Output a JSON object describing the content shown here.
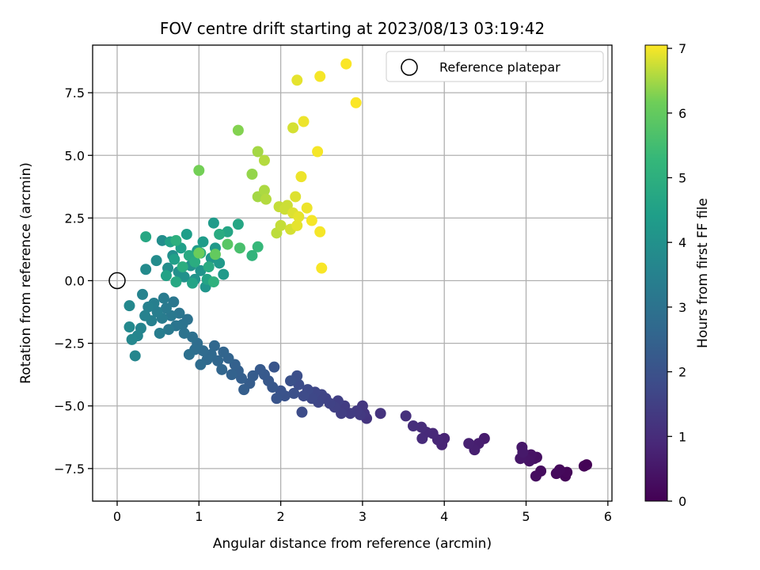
{
  "chart_data": {
    "type": "scatter",
    "title": "FOV centre drift starting at 2023/08/13 03:19:42",
    "xlabel": "Angular distance from reference (arcmin)",
    "ylabel": "Rotation from reference (arcmin)",
    "xlim": [
      -0.3,
      6.05
    ],
    "ylim": [
      -8.8,
      9.4
    ],
    "xticks": [
      0,
      1,
      2,
      3,
      4,
      5,
      6
    ],
    "xtick_labels": [
      "0",
      "1",
      "2",
      "3",
      "4",
      "5",
      "6"
    ],
    "yticks": [
      -7.5,
      -5.0,
      -2.5,
      0.0,
      2.5,
      5.0,
      7.5
    ],
    "ytick_labels": [
      "−7.5",
      "−5.0",
      "−2.5",
      "0.0",
      "2.5",
      "5.0",
      "7.5"
    ],
    "grid": true,
    "legend": {
      "position": "top-right",
      "entries": [
        {
          "label": "Reference platepar",
          "marker": "hollow-circle"
        }
      ]
    },
    "reference_point": {
      "x": 0.0,
      "y": 0.0
    },
    "colorbar": {
      "label": "Hours from first FF file",
      "range": [
        0,
        7.05
      ],
      "ticks": [
        0,
        1,
        2,
        3,
        4,
        5,
        6,
        7
      ],
      "tick_labels": [
        "0",
        "1",
        "2",
        "3",
        "4",
        "5",
        "6",
        "7"
      ],
      "colormap": "viridis"
    },
    "series": [
      {
        "marker": "filled-circle",
        "color_by": "hours",
        "points": [
          {
            "x": 5.74,
            "y": -7.35,
            "c": 0.03
          },
          {
            "x": 5.71,
            "y": -7.4,
            "c": 0.06
          },
          {
            "x": 5.48,
            "y": -7.8,
            "c": 0.1
          },
          {
            "x": 5.5,
            "y": -7.65,
            "c": 0.13
          },
          {
            "x": 5.41,
            "y": -7.55,
            "c": 0.17
          },
          {
            "x": 5.37,
            "y": -7.7,
            "c": 0.2
          },
          {
            "x": 5.18,
            "y": -7.6,
            "c": 0.24
          },
          {
            "x": 5.12,
            "y": -7.8,
            "c": 0.27
          },
          {
            "x": 5.13,
            "y": -7.05,
            "c": 0.31
          },
          {
            "x": 5.1,
            "y": -7.1,
            "c": 0.34
          },
          {
            "x": 5.06,
            "y": -6.95,
            "c": 0.38
          },
          {
            "x": 5.04,
            "y": -7.2,
            "c": 0.41
          },
          {
            "x": 4.98,
            "y": -7.05,
            "c": 0.45
          },
          {
            "x": 4.93,
            "y": -7.1,
            "c": 0.48
          },
          {
            "x": 4.95,
            "y": -6.65,
            "c": 0.52
          },
          {
            "x": 4.96,
            "y": -6.85,
            "c": 0.55
          },
          {
            "x": 4.49,
            "y": -6.3,
            "c": 0.62
          },
          {
            "x": 4.42,
            "y": -6.5,
            "c": 0.65
          },
          {
            "x": 4.37,
            "y": -6.75,
            "c": 0.69
          },
          {
            "x": 4.3,
            "y": -6.5,
            "c": 0.72
          },
          {
            "x": 4.0,
            "y": -6.3,
            "c": 0.79
          },
          {
            "x": 3.97,
            "y": -6.55,
            "c": 0.82
          },
          {
            "x": 3.92,
            "y": -6.35,
            "c": 0.86
          },
          {
            "x": 3.86,
            "y": -6.1,
            "c": 0.9
          },
          {
            "x": 3.78,
            "y": -6.05,
            "c": 0.93
          },
          {
            "x": 3.73,
            "y": -6.3,
            "c": 0.97
          },
          {
            "x": 3.72,
            "y": -5.85,
            "c": 1.0
          },
          {
            "x": 3.62,
            "y": -5.8,
            "c": 1.04
          },
          {
            "x": 3.53,
            "y": -5.4,
            "c": 1.1
          },
          {
            "x": 3.22,
            "y": -5.3,
            "c": 1.17
          },
          {
            "x": 3.05,
            "y": -5.5,
            "c": 1.2
          },
          {
            "x": 3.02,
            "y": -5.3,
            "c": 1.24
          },
          {
            "x": 3.0,
            "y": -5.0,
            "c": 1.27
          },
          {
            "x": 2.97,
            "y": -5.35,
            "c": 1.31
          },
          {
            "x": 2.93,
            "y": -5.2,
            "c": 1.34
          },
          {
            "x": 2.85,
            "y": -5.3,
            "c": 1.38
          },
          {
            "x": 2.78,
            "y": -5.0,
            "c": 1.41
          },
          {
            "x": 2.74,
            "y": -5.3,
            "c": 1.45
          },
          {
            "x": 2.7,
            "y": -4.8,
            "c": 1.48
          },
          {
            "x": 2.66,
            "y": -5.05,
            "c": 1.52
          },
          {
            "x": 2.6,
            "y": -4.9,
            "c": 1.55
          },
          {
            "x": 2.55,
            "y": -4.7,
            "c": 1.59
          },
          {
            "x": 2.5,
            "y": -4.55,
            "c": 1.62
          },
          {
            "x": 2.46,
            "y": -4.85,
            "c": 1.66
          },
          {
            "x": 2.42,
            "y": -4.45,
            "c": 1.69
          },
          {
            "x": 2.38,
            "y": -4.7,
            "c": 1.72
          },
          {
            "x": 2.33,
            "y": -4.35,
            "c": 1.76
          },
          {
            "x": 2.28,
            "y": -4.6,
            "c": 1.79
          },
          {
            "x": 2.26,
            "y": -5.25,
            "c": 1.83
          },
          {
            "x": 2.22,
            "y": -4.15,
            "c": 1.86
          },
          {
            "x": 2.2,
            "y": -3.8,
            "c": 1.9
          },
          {
            "x": 2.16,
            "y": -4.5,
            "c": 1.93
          },
          {
            "x": 2.12,
            "y": -4.0,
            "c": 1.97
          },
          {
            "x": 2.05,
            "y": -4.6,
            "c": 2.0
          },
          {
            "x": 2.0,
            "y": -4.4,
            "c": 2.03
          },
          {
            "x": 1.95,
            "y": -4.7,
            "c": 2.07
          },
          {
            "x": 1.92,
            "y": -3.45,
            "c": 2.1
          },
          {
            "x": 1.9,
            "y": -4.25,
            "c": 2.14
          },
          {
            "x": 1.85,
            "y": -4.0,
            "c": 2.17
          },
          {
            "x": 1.8,
            "y": -3.75,
            "c": 2.21
          },
          {
            "x": 1.75,
            "y": -3.55,
            "c": 2.24
          },
          {
            "x": 1.66,
            "y": -3.8,
            "c": 2.28
          },
          {
            "x": 1.62,
            "y": -4.1,
            "c": 2.31
          },
          {
            "x": 1.55,
            "y": -4.35,
            "c": 2.35
          },
          {
            "x": 1.52,
            "y": -3.9,
            "c": 2.38
          },
          {
            "x": 1.48,
            "y": -3.6,
            "c": 2.41
          },
          {
            "x": 1.44,
            "y": -3.35,
            "c": 2.45
          },
          {
            "x": 1.4,
            "y": -3.75,
            "c": 2.48
          },
          {
            "x": 1.36,
            "y": -3.1,
            "c": 2.52
          },
          {
            "x": 1.3,
            "y": -2.85,
            "c": 2.55
          },
          {
            "x": 1.28,
            "y": -3.55,
            "c": 2.59
          },
          {
            "x": 1.23,
            "y": -3.2,
            "c": 2.62
          },
          {
            "x": 1.19,
            "y": -2.6,
            "c": 2.66
          },
          {
            "x": 1.15,
            "y": -2.95,
            "c": 2.69
          },
          {
            "x": 1.1,
            "y": -3.15,
            "c": 2.72
          },
          {
            "x": 1.05,
            "y": -2.8,
            "c": 2.76
          },
          {
            "x": 1.02,
            "y": -3.35,
            "c": 2.79
          },
          {
            "x": 0.98,
            "y": -2.5,
            "c": 2.83
          },
          {
            "x": 0.95,
            "y": -2.75,
            "c": 2.86
          },
          {
            "x": 0.92,
            "y": -2.25,
            "c": 2.9
          },
          {
            "x": 0.88,
            "y": -2.95,
            "c": 2.93
          },
          {
            "x": 0.86,
            "y": -1.55,
            "c": 2.97
          },
          {
            "x": 0.82,
            "y": -2.1,
            "c": 3.0
          },
          {
            "x": 0.8,
            "y": -1.75,
            "c": 3.03
          },
          {
            "x": 0.76,
            "y": -1.3,
            "c": 3.07
          },
          {
            "x": 0.72,
            "y": -1.8,
            "c": 3.1
          },
          {
            "x": 0.69,
            "y": -0.85,
            "c": 3.14
          },
          {
            "x": 0.66,
            "y": -1.4,
            "c": 3.17
          },
          {
            "x": 0.63,
            "y": -1.95,
            "c": 3.21
          },
          {
            "x": 0.6,
            "y": -1.1,
            "c": 3.24
          },
          {
            "x": 0.57,
            "y": -0.7,
            "c": 3.28
          },
          {
            "x": 0.55,
            "y": -1.5,
            "c": 3.31
          },
          {
            "x": 0.52,
            "y": -2.1,
            "c": 3.35
          },
          {
            "x": 0.49,
            "y": -1.25,
            "c": 3.38
          },
          {
            "x": 0.45,
            "y": -0.9,
            "c": 3.41
          },
          {
            "x": 0.42,
            "y": -1.6,
            "c": 3.45
          },
          {
            "x": 0.38,
            "y": -1.05,
            "c": 3.48
          },
          {
            "x": 0.34,
            "y": -1.4,
            "c": 3.52
          },
          {
            "x": 0.31,
            "y": -0.55,
            "c": 3.55
          },
          {
            "x": 0.29,
            "y": -1.9,
            "c": 3.59
          },
          {
            "x": 0.25,
            "y": -2.2,
            "c": 3.62
          },
          {
            "x": 0.22,
            "y": -3.0,
            "c": 3.66
          },
          {
            "x": 0.18,
            "y": -2.35,
            "c": 3.69
          },
          {
            "x": 0.15,
            "y": -1.0,
            "c": 3.72
          },
          {
            "x": 0.15,
            "y": -1.85,
            "c": 3.76
          },
          {
            "x": 0.35,
            "y": 0.45,
            "c": 3.79
          },
          {
            "x": 0.48,
            "y": 0.8,
            "c": 3.83
          },
          {
            "x": 0.62,
            "y": 0.5,
            "c": 3.86
          },
          {
            "x": 0.55,
            "y": 1.6,
            "c": 3.9
          },
          {
            "x": 0.68,
            "y": 1.0,
            "c": 3.93
          },
          {
            "x": 0.75,
            "y": 0.35,
            "c": 3.97
          },
          {
            "x": 0.82,
            "y": 0.15,
            "c": 4.0
          },
          {
            "x": 0.9,
            "y": 0.6,
            "c": 4.03
          },
          {
            "x": 0.95,
            "y": 0.05,
            "c": 4.07
          },
          {
            "x": 1.02,
            "y": 0.4,
            "c": 4.1
          },
          {
            "x": 1.08,
            "y": -0.25,
            "c": 4.14
          },
          {
            "x": 1.15,
            "y": 0.9,
            "c": 4.17
          },
          {
            "x": 1.2,
            "y": 1.3,
            "c": 4.21
          },
          {
            "x": 1.25,
            "y": 0.7,
            "c": 4.24
          },
          {
            "x": 1.3,
            "y": 0.25,
            "c": 4.28
          },
          {
            "x": 1.18,
            "y": 2.3,
            "c": 4.31
          },
          {
            "x": 1.05,
            "y": 1.55,
            "c": 4.35
          },
          {
            "x": 0.98,
            "y": 1.2,
            "c": 4.38
          },
          {
            "x": 0.85,
            "y": 1.85,
            "c": 4.41
          },
          {
            "x": 0.78,
            "y": 1.3,
            "c": 4.45
          },
          {
            "x": 0.7,
            "y": 0.85,
            "c": 4.48
          },
          {
            "x": 0.65,
            "y": 1.55,
            "c": 4.52
          },
          {
            "x": 0.6,
            "y": 0.2,
            "c": 4.55
          },
          {
            "x": 0.92,
            "y": -0.1,
            "c": 4.59
          },
          {
            "x": 1.1,
            "y": 0.05,
            "c": 4.62
          },
          {
            "x": 1.35,
            "y": 1.95,
            "c": 4.66
          },
          {
            "x": 1.48,
            "y": 2.25,
            "c": 4.69
          },
          {
            "x": 0.35,
            "y": 1.75,
            "c": 4.72
          },
          {
            "x": 0.72,
            "y": -0.05,
            "c": 4.76
          },
          {
            "x": 0.88,
            "y": 1.0,
            "c": 4.79
          },
          {
            "x": 1.12,
            "y": 0.55,
            "c": 4.83
          },
          {
            "x": 1.25,
            "y": 1.85,
            "c": 4.86
          },
          {
            "x": 0.95,
            "y": 0.75,
            "c": 4.9
          },
          {
            "x": 0.8,
            "y": 0.55,
            "c": 4.93
          },
          {
            "x": 1.02,
            "y": 1.1,
            "c": 4.97
          },
          {
            "x": 0.72,
            "y": 1.6,
            "c": 5.0
          },
          {
            "x": 1.18,
            "y": -0.05,
            "c": 5.05
          },
          {
            "x": 1.65,
            "y": 1.0,
            "c": 5.15
          },
          {
            "x": 1.72,
            "y": 1.35,
            "c": 5.3
          },
          {
            "x": 1.5,
            "y": 1.3,
            "c": 5.6
          },
          {
            "x": 1.35,
            "y": 1.45,
            "c": 5.85
          },
          {
            "x": 1.2,
            "y": 1.05,
            "c": 6.0
          },
          {
            "x": 1.0,
            "y": 1.1,
            "c": 6.1
          },
          {
            "x": 1.0,
            "y": 4.4,
            "c": 6.2
          },
          {
            "x": 1.48,
            "y": 6.0,
            "c": 6.3
          },
          {
            "x": 1.65,
            "y": 4.25,
            "c": 6.4
          },
          {
            "x": 1.72,
            "y": 3.35,
            "c": 6.5
          },
          {
            "x": 1.72,
            "y": 5.15,
            "c": 6.5
          },
          {
            "x": 1.8,
            "y": 3.6,
            "c": 6.55
          },
          {
            "x": 1.8,
            "y": 4.8,
            "c": 6.6
          },
          {
            "x": 1.82,
            "y": 3.25,
            "c": 6.6
          },
          {
            "x": 1.95,
            "y": 1.9,
            "c": 6.65
          },
          {
            "x": 1.98,
            "y": 2.95,
            "c": 6.7
          },
          {
            "x": 2.0,
            "y": 2.2,
            "c": 6.7
          },
          {
            "x": 2.05,
            "y": 2.85,
            "c": 6.75
          },
          {
            "x": 2.08,
            "y": 3.0,
            "c": 6.75
          },
          {
            "x": 2.12,
            "y": 2.05,
            "c": 6.8
          },
          {
            "x": 2.15,
            "y": 6.1,
            "c": 6.8
          },
          {
            "x": 2.15,
            "y": 2.7,
            "c": 6.85
          },
          {
            "x": 2.18,
            "y": 3.35,
            "c": 6.85
          },
          {
            "x": 2.2,
            "y": 2.2,
            "c": 6.9
          },
          {
            "x": 2.2,
            "y": 8.0,
            "c": 6.9
          },
          {
            "x": 2.22,
            "y": 2.55,
            "c": 6.9
          },
          {
            "x": 2.25,
            "y": 4.15,
            "c": 6.95
          },
          {
            "x": 2.28,
            "y": 6.35,
            "c": 6.95
          },
          {
            "x": 2.32,
            "y": 2.9,
            "c": 6.95
          },
          {
            "x": 2.38,
            "y": 2.4,
            "c": 7.0
          },
          {
            "x": 2.45,
            "y": 5.15,
            "c": 7.0
          },
          {
            "x": 2.48,
            "y": 8.15,
            "c": 7.0
          },
          {
            "x": 2.48,
            "y": 1.95,
            "c": 7.0
          },
          {
            "x": 2.5,
            "y": 0.5,
            "c": 7.02
          },
          {
            "x": 2.8,
            "y": 8.65,
            "c": 7.03
          },
          {
            "x": 2.92,
            "y": 7.1,
            "c": 7.03
          }
        ]
      }
    ]
  }
}
